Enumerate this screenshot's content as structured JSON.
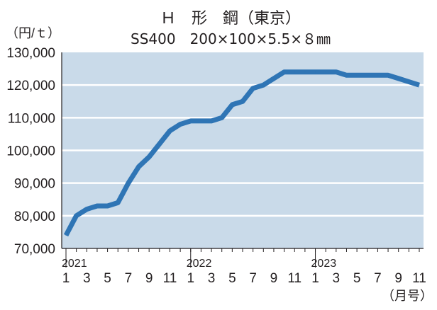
{
  "chart_data": {
    "type": "line",
    "title": "Ｈ　形　鋼（東京）",
    "subtitle": "SS400　200×100×5.5×８㎜",
    "ylabel": "（円/ｔ）",
    "xlabel": "（月号）",
    "ylim": [
      70000,
      130000
    ],
    "yticks": [
      70000,
      80000,
      90000,
      100000,
      110000,
      120000,
      130000
    ],
    "ytick_labels": [
      "70,000",
      "80,000",
      "90,000",
      "100,000",
      "110,000",
      "120,000",
      "130,000"
    ],
    "xticks": [
      {
        "index": 0,
        "label": "1"
      },
      {
        "index": 2,
        "label": "3"
      },
      {
        "index": 4,
        "label": "5"
      },
      {
        "index": 6,
        "label": "7"
      },
      {
        "index": 8,
        "label": "9"
      },
      {
        "index": 10,
        "label": "11"
      },
      {
        "index": 12,
        "label": "1"
      },
      {
        "index": 14,
        "label": "3"
      },
      {
        "index": 16,
        "label": "5"
      },
      {
        "index": 18,
        "label": "7"
      },
      {
        "index": 20,
        "label": "9"
      },
      {
        "index": 22,
        "label": "11"
      },
      {
        "index": 24,
        "label": "1"
      },
      {
        "index": 26,
        "label": "3"
      },
      {
        "index": 28,
        "label": "5"
      },
      {
        "index": 30,
        "label": "7"
      },
      {
        "index": 32,
        "label": "9"
      },
      {
        "index": 34,
        "label": "11"
      }
    ],
    "year_labels": [
      {
        "index": 0,
        "label": "2021"
      },
      {
        "index": 12,
        "label": "2022"
      },
      {
        "index": 24,
        "label": "2023"
      }
    ],
    "x": [
      "2021-01",
      "2021-02",
      "2021-03",
      "2021-04",
      "2021-05",
      "2021-06",
      "2021-07",
      "2021-08",
      "2021-09",
      "2021-10",
      "2021-11",
      "2021-12",
      "2022-01",
      "2022-02",
      "2022-03",
      "2022-04",
      "2022-05",
      "2022-06",
      "2022-07",
      "2022-08",
      "2022-09",
      "2022-10",
      "2022-11",
      "2022-12",
      "2023-01",
      "2023-02",
      "2023-03",
      "2023-04",
      "2023-05",
      "2023-06",
      "2023-07",
      "2023-08",
      "2023-09",
      "2023-10",
      "2023-11"
    ],
    "series": [
      {
        "values": [
          74000,
          80000,
          82000,
          83000,
          83000,
          84000,
          90000,
          95000,
          98000,
          102000,
          106000,
          108000,
          109000,
          109000,
          109000,
          110000,
          114000,
          115000,
          119000,
          120000,
          122000,
          124000,
          124000,
          124000,
          124000,
          124000,
          124000,
          123000,
          123000,
          123000,
          123000,
          123000,
          122000,
          121000,
          120000
        ]
      }
    ],
    "grid": true,
    "colors": {
      "line": "#2f75b5",
      "plot_bg": "#c9dae9",
      "grid": "#ffffff",
      "text": "#231f20"
    }
  }
}
